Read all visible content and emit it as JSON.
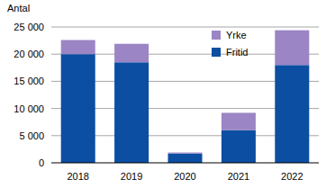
{
  "chart_data": {
    "type": "bar",
    "stacked": true,
    "y_label": "Antal",
    "categories": [
      "2018",
      "2019",
      "2020",
      "2021",
      "2022"
    ],
    "series": [
      {
        "name": "Fritid",
        "color": "#0b4ea2",
        "values": [
          20000,
          18500,
          1700,
          6000,
          18000
        ]
      },
      {
        "name": "Yrke",
        "color": "#9b85c4",
        "values": [
          2600,
          3400,
          200,
          3200,
          6400
        ]
      }
    ],
    "ylim": [
      0,
      25000
    ],
    "yticks": [
      0,
      {
        "value": 5000,
        "label": "5 000"
      },
      {
        "value": 10000,
        "label": "10 000"
      },
      {
        "value": 15000,
        "label": "15 000"
      },
      {
        "value": 20000,
        "label": "20 000"
      },
      {
        "value": 25000,
        "label": "25 000"
      }
    ],
    "grid": true,
    "legend": "upper right"
  }
}
